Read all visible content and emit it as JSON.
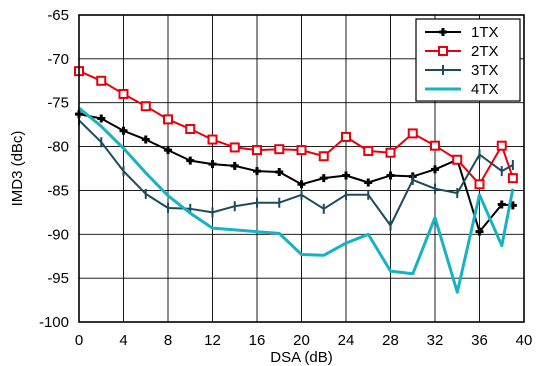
{
  "chart_data": {
    "type": "line",
    "title": "",
    "xlabel": "DSA (dB)",
    "ylabel": "IMD3 (dBc)",
    "xlim": [
      0,
      40
    ],
    "ylim": [
      -100,
      -65
    ],
    "xticks": [
      0,
      4,
      8,
      12,
      16,
      20,
      24,
      28,
      32,
      36,
      40
    ],
    "yticks": [
      -65,
      -70,
      -75,
      -80,
      -85,
      -90,
      -95,
      -100
    ],
    "grid": true,
    "legend_position": "top-right",
    "series": [
      {
        "name": "1TX",
        "color": "#000000",
        "marker": "plus",
        "x": [
          0,
          2,
          4,
          6,
          8,
          10,
          12,
          14,
          16,
          18,
          20,
          22,
          24,
          26,
          28,
          30,
          32,
          34,
          36,
          38,
          39
        ],
        "values": [
          -76.3,
          -76.8,
          -78.2,
          -79.2,
          -80.4,
          -81.6,
          -82.0,
          -82.2,
          -82.8,
          -82.9,
          -84.3,
          -83.6,
          -83.3,
          -84.1,
          -83.3,
          -83.4,
          -82.6,
          -81.5,
          -89.7,
          -86.6,
          -86.7
        ]
      },
      {
        "name": "2TX",
        "color": "#e8000b",
        "marker": "square",
        "x": [
          0,
          2,
          4,
          6,
          8,
          10,
          12,
          14,
          16,
          18,
          20,
          22,
          24,
          26,
          28,
          30,
          32,
          34,
          36,
          38,
          39
        ],
        "values": [
          -71.4,
          -72.5,
          -74.0,
          -75.4,
          -76.9,
          -78.0,
          -79.2,
          -80.1,
          -80.4,
          -80.3,
          -80.4,
          -81.1,
          -78.9,
          -80.5,
          -80.7,
          -78.5,
          -79.9,
          -81.5,
          -84.3,
          -79.9,
          -83.6
        ]
      },
      {
        "name": "3TX",
        "color": "#1e4b5c",
        "marker": "vbar",
        "x": [
          0,
          2,
          4,
          6,
          8,
          10,
          12,
          14,
          16,
          18,
          20,
          22,
          24,
          26,
          28,
          30,
          32,
          34,
          36,
          38,
          39
        ],
        "values": [
          -77.0,
          -79.5,
          -82.8,
          -85.4,
          -87.0,
          -87.1,
          -87.5,
          -86.8,
          -86.4,
          -86.4,
          -85.5,
          -87.1,
          -85.5,
          -85.5,
          -89.0,
          -83.8,
          -84.8,
          -85.3,
          -80.9,
          -82.8,
          -82.1
        ]
      },
      {
        "name": "4TX",
        "color": "#17b3c4",
        "marker": "none",
        "x": [
          0,
          2,
          4,
          6,
          8,
          10,
          12,
          14,
          16,
          18,
          20,
          22,
          24,
          26,
          28,
          30,
          32,
          34,
          36,
          38,
          39
        ],
        "values": [
          -75.6,
          -77.7,
          -80.2,
          -83.0,
          -85.6,
          -87.6,
          -89.3,
          -89.5,
          -89.7,
          -89.9,
          -92.3,
          -92.4,
          -91.0,
          -90.0,
          -94.2,
          -94.5,
          -88.1,
          -96.6,
          -85.5,
          -91.3,
          -84.8
        ]
      }
    ]
  }
}
